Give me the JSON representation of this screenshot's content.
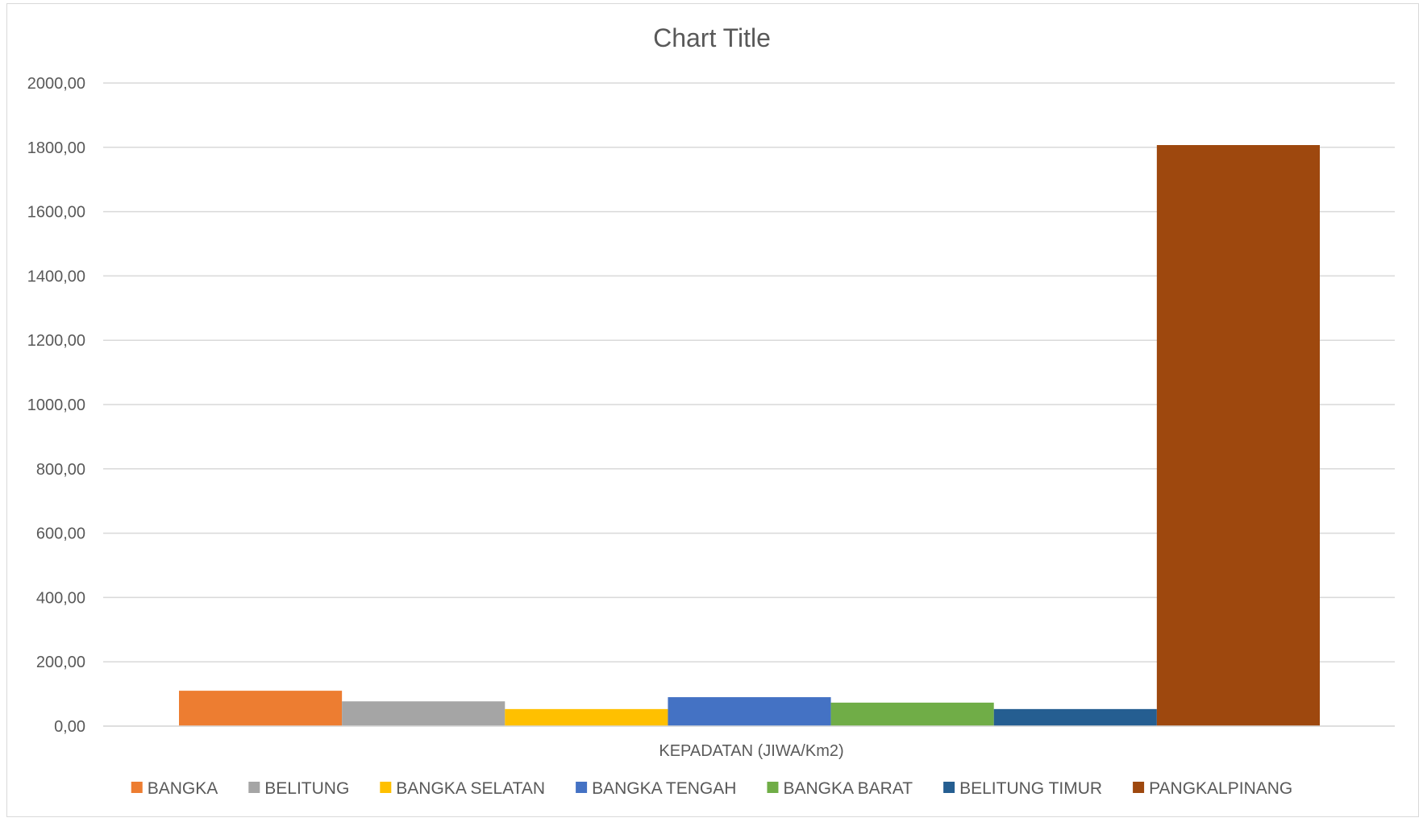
{
  "chart_data": {
    "type": "bar",
    "title": "Chart Title",
    "categories": [
      "KEPADATAN  (JIWA/Km2)"
    ],
    "xlabel": "",
    "ylabel": "",
    "ylim": [
      0,
      2000
    ],
    "yticks": [
      "0,00",
      "200,00",
      "400,00",
      "600,00",
      "800,00",
      "1000,00",
      "1200,00",
      "1400,00",
      "1600,00",
      "1800,00",
      "2000,00"
    ],
    "grid": true,
    "legend_position": "bottom",
    "series": [
      {
        "name": "BANGKA",
        "values": [
          110
        ],
        "color": "#ED7D31"
      },
      {
        "name": "BELITUNG",
        "values": [
          77
        ],
        "color": "#A5A5A5"
      },
      {
        "name": "BANGKA SELATAN",
        "values": [
          53
        ],
        "color": "#FFC000"
      },
      {
        "name": "BANGKA TENGAH",
        "values": [
          90
        ],
        "color": "#4472C4"
      },
      {
        "name": "BANGKA BARAT",
        "values": [
          73
        ],
        "color": "#70AD47"
      },
      {
        "name": "BELITUNG TIMUR",
        "values": [
          53
        ],
        "color": "#255E91"
      },
      {
        "name": "PANGKALPINANG",
        "values": [
          1807
        ],
        "color": "#9E480E"
      }
    ]
  }
}
